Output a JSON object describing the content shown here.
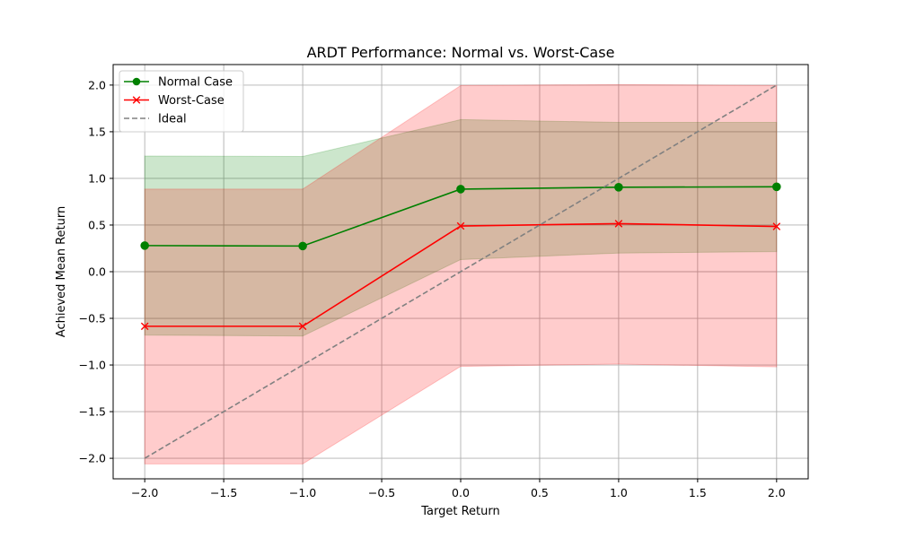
{
  "chart_data": {
    "type": "line",
    "title": "ARDT Performance: Normal vs. Worst-Case",
    "xlabel": "Target Return",
    "ylabel": "Achieved Mean Return",
    "x": [
      -2.0,
      -1.0,
      0.0,
      1.0,
      2.0
    ],
    "xlim": [
      -2.2,
      2.2
    ],
    "ylim": [
      -2.22,
      2.22
    ],
    "xticks": [
      "−2.0",
      "−1.5",
      "−1.0",
      "−0.5",
      "0.0",
      "0.5",
      "1.0",
      "1.5",
      "2.0"
    ],
    "xtick_values": [
      -2.0,
      -1.5,
      -1.0,
      -0.5,
      0.0,
      0.5,
      1.0,
      1.5,
      2.0
    ],
    "yticks": [
      "−2.0",
      "−1.5",
      "−1.0",
      "−0.5",
      "0.0",
      "0.5",
      "1.0",
      "1.5",
      "2.0"
    ],
    "ytick_values": [
      -2.0,
      -1.5,
      -1.0,
      -0.5,
      0.0,
      0.5,
      1.0,
      1.5,
      2.0
    ],
    "grid": true,
    "legend_position": "top-left",
    "series": [
      {
        "name": "Normal Case",
        "color": "#008000",
        "marker": "circle",
        "values": [
          0.28,
          0.275,
          0.885,
          0.905,
          0.91
        ],
        "band_lower": [
          -0.68,
          -0.69,
          0.13,
          0.2,
          0.215
        ],
        "band_upper": [
          1.24,
          1.235,
          1.63,
          1.6,
          1.6
        ]
      },
      {
        "name": "Worst-Case",
        "color": "#ff0000",
        "marker": "x",
        "values": [
          -0.585,
          -0.585,
          0.49,
          0.515,
          0.485
        ],
        "band_lower": [
          -2.06,
          -2.06,
          -1.015,
          -0.99,
          -1.02
        ],
        "band_upper": [
          0.885,
          0.885,
          1.995,
          2.005,
          1.995
        ]
      },
      {
        "name": "Ideal",
        "color": "#808080",
        "line_style": "dashed",
        "x": [
          -2.0,
          2.0
        ],
        "values": [
          -2.0,
          2.0
        ]
      }
    ]
  }
}
